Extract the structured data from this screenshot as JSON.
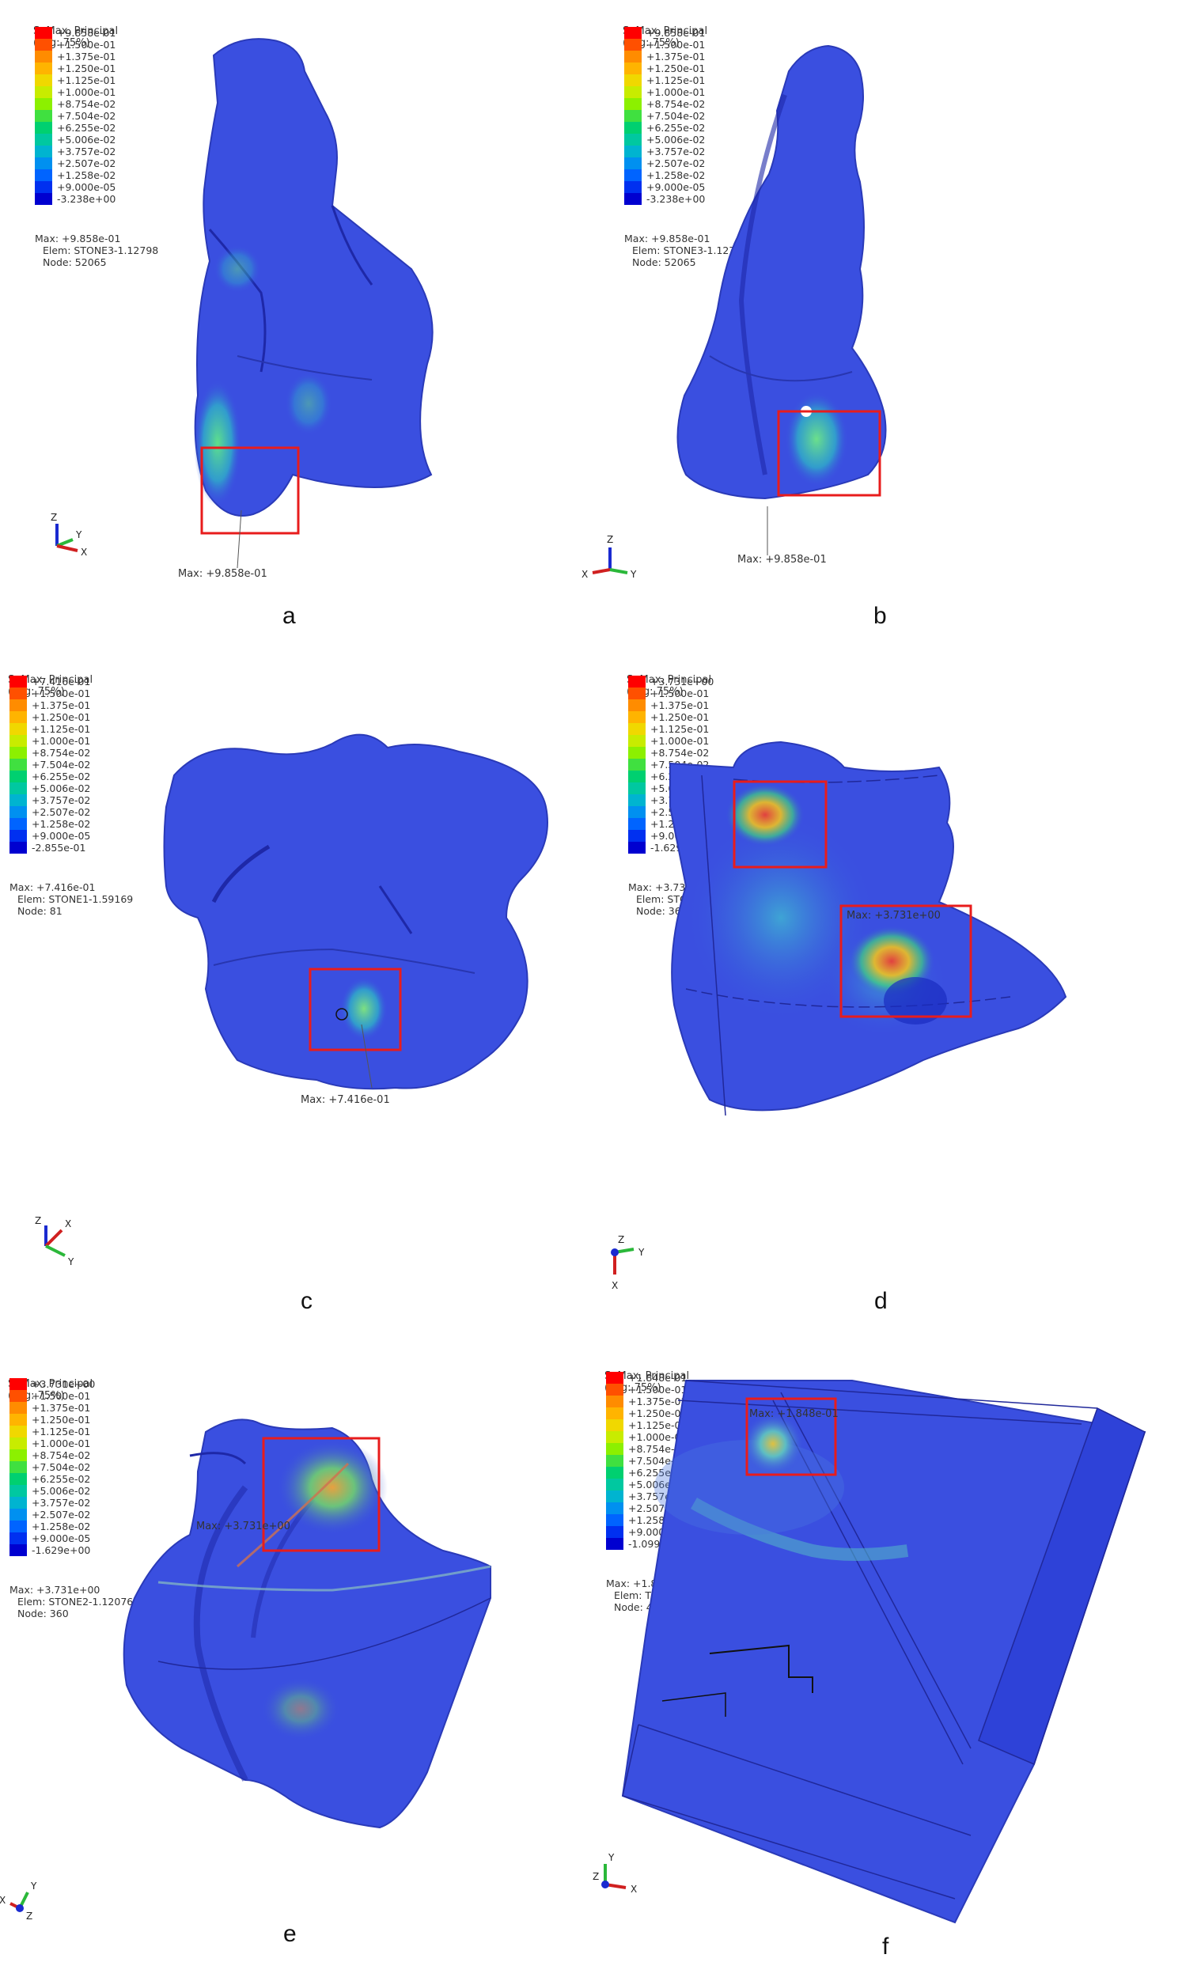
{
  "panels": [
    {
      "letter": "a",
      "header": [
        "S, Max. Principal",
        "(Avg: 75%)"
      ],
      "legend": [
        "+9.858e-01",
        "+1.500e-01",
        "+1.375e-01",
        "+1.250e-01",
        "+1.125e-01",
        "+1.000e-01",
        "+8.754e-02",
        "+7.504e-02",
        "+6.255e-02",
        "+5.006e-02",
        "+3.757e-02",
        "+2.507e-02",
        "+1.258e-02",
        "+9.000e-05",
        "-3.238e+00"
      ],
      "info": [
        "Max: +9.858e-01",
        "Elem: STONE3-1.12798",
        "Node: 52065"
      ],
      "max_annotation": "Max: +9.858e-01",
      "axes": [
        "Z",
        "Y",
        "X"
      ]
    },
    {
      "letter": "b",
      "header": [
        "S, Max. Principal",
        "(Avg: 75%)"
      ],
      "legend": [
        "+9.858e-01",
        "+1.500e-01",
        "+1.375e-01",
        "+1.250e-01",
        "+1.125e-01",
        "+1.000e-01",
        "+8.754e-02",
        "+7.504e-02",
        "+6.255e-02",
        "+5.006e-02",
        "+3.757e-02",
        "+2.507e-02",
        "+1.258e-02",
        "+9.000e-05",
        "-3.238e+00"
      ],
      "info": [
        "Max: +9.858e-01",
        "Elem: STONE3-1.12798",
        "Node: 52065"
      ],
      "max_annotation": "Max: +9.858e-01",
      "axes": [
        "Z",
        "X",
        "Y"
      ]
    },
    {
      "letter": "c",
      "header": [
        "S, Max. Principal",
        "(Avg: 75%)"
      ],
      "legend": [
        "+7.416e-01",
        "+1.500e-01",
        "+1.375e-01",
        "+1.250e-01",
        "+1.125e-01",
        "+1.000e-01",
        "+8.754e-02",
        "+7.504e-02",
        "+6.255e-02",
        "+5.006e-02",
        "+3.757e-02",
        "+2.507e-02",
        "+1.258e-02",
        "+9.000e-05",
        "-2.855e-01"
      ],
      "info": [
        "Max: +7.416e-01",
        "Elem: STONE1-1.59169",
        "Node: 81"
      ],
      "max_annotation": "Max: +7.416e-01",
      "axes": [
        "Z",
        "X",
        "Y"
      ]
    },
    {
      "letter": "d",
      "header": [
        "S, Max. Principal",
        "(Avg: 75%)"
      ],
      "legend": [
        "+3.731e+00",
        "+1.500e-01",
        "+1.375e-01",
        "+1.250e-01",
        "+1.125e-01",
        "+1.000e-01",
        "+8.754e-02",
        "+7.504e-02",
        "+6.255e-02",
        "+5.006e-02",
        "+3.757e-02",
        "+2.507e-02",
        "+1.258e-02",
        "+9.000e-05",
        "-1.629e+00"
      ],
      "info": [
        "Max: +3.731e+00",
        "Elem: STONE2-1.120763",
        "Node: 360"
      ],
      "max_annotation": "Max: +3.731e+00",
      "axes": [
        "Z",
        "Y",
        "X"
      ]
    },
    {
      "letter": "e",
      "header": [
        "S, Max. Principal",
        "(Avg: 75%)"
      ],
      "legend": [
        "+3.731e+00",
        "+1.500e-01",
        "+1.375e-01",
        "+1.250e-01",
        "+1.125e-01",
        "+1.000e-01",
        "+8.754e-02",
        "+7.504e-02",
        "+6.255e-02",
        "+5.006e-02",
        "+3.757e-02",
        "+2.507e-02",
        "+1.258e-02",
        "+9.000e-05",
        "-1.629e+00"
      ],
      "info": [
        "Max: +3.731e+00",
        "Elem: STONE2-1.120763",
        "Node: 360"
      ],
      "max_annotation": "Max: +3.731e+00",
      "axes": [
        "Y",
        "X",
        "Z"
      ]
    },
    {
      "letter": "f",
      "header": [
        "S, Max. Principal",
        "(Avg: 75%)"
      ],
      "legend": [
        "+1.848e-01",
        "+1.500e-01",
        "+1.375e-01",
        "+1.250e-01",
        "+1.125e-01",
        "+1.000e-01",
        "+8.754e-02",
        "+7.504e-02",
        "+6.255e-02",
        "+5.006e-02",
        "+3.757e-02",
        "+2.507e-02",
        "+1.258e-02",
        "+9.000e-05",
        "-1.099e-01"
      ],
      "info": [
        "Max: +1.848e-01",
        "Elem: TAI-1.30609",
        "Node: 441"
      ],
      "max_annotation": "Max: +1.848e-01",
      "axes": [
        "Y",
        "Z",
        "X"
      ]
    }
  ],
  "colors": {
    "legend_scale": [
      "#ff0000",
      "#ff5000",
      "#ff8c00",
      "#ffb400",
      "#f0d800",
      "#c8ec00",
      "#8cf000",
      "#40e040",
      "#00d070",
      "#00c8a0",
      "#00b4d0",
      "#0090f0",
      "#0064ff",
      "#0030f0",
      "#0000d0"
    ],
    "model_base": "#3a4fe0",
    "highlight_box": "#e81c1c"
  }
}
